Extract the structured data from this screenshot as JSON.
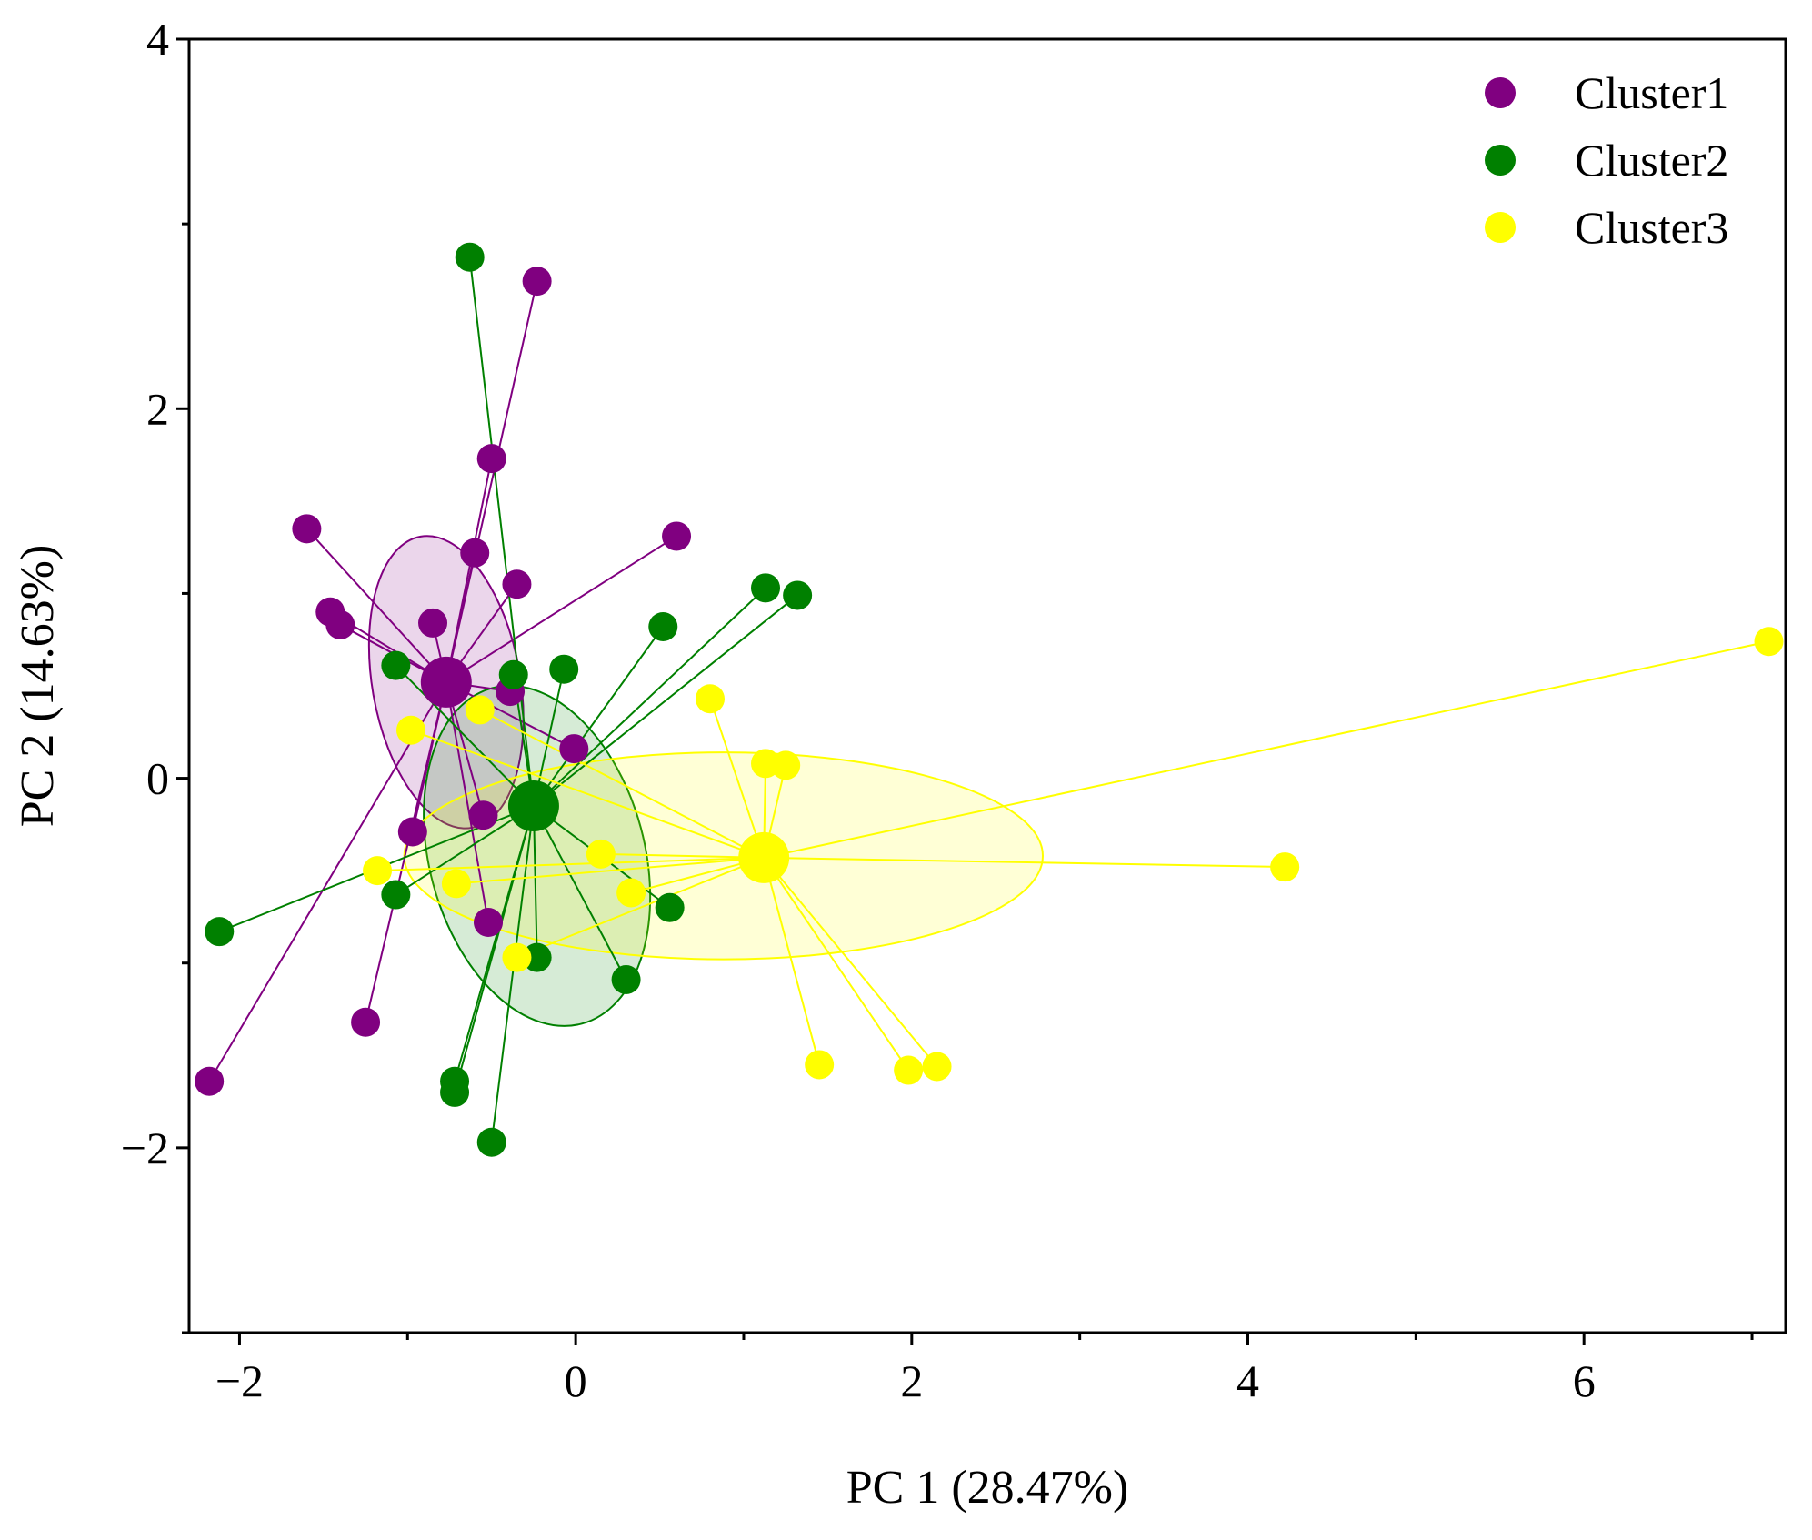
{
  "chart_data": {
    "type": "scatter",
    "title": "",
    "xlabel": "PC 1 (28.47%)",
    "ylabel": "PC 2 (14.63%)",
    "xlim": [
      -2.3,
      7.2
    ],
    "ylim": [
      -3,
      4
    ],
    "x_ticks": [
      -2,
      0,
      2,
      4,
      6
    ],
    "x_tick_labels": [
      "−2",
      "0",
      "2",
      "4",
      "6"
    ],
    "x_minor_ticks": [
      -1,
      1,
      3,
      5,
      7
    ],
    "y_ticks": [
      -2,
      0,
      2,
      4
    ],
    "y_tick_labels": [
      "−2",
      "0",
      "2",
      "4"
    ],
    "y_minor_ticks": [
      -3,
      -1,
      1,
      3
    ],
    "grid": false,
    "legend_position": "top-right",
    "series": [
      {
        "name": "Cluster1",
        "color": "#800080",
        "centroid": [
          -0.77,
          0.52
        ],
        "ellipse": {
          "center": [
            -0.77,
            0.52
          ],
          "rx": 0.44,
          "ry": 0.8,
          "angle_deg": 10
        },
        "points": [
          [
            -0.23,
            2.69
          ],
          [
            -0.5,
            1.73
          ],
          [
            -1.6,
            1.35
          ],
          [
            0.6,
            1.31
          ],
          [
            -0.6,
            1.22
          ],
          [
            -0.35,
            1.05
          ],
          [
            -1.46,
            0.9
          ],
          [
            -1.4,
            0.83
          ],
          [
            -0.85,
            0.84
          ],
          [
            -0.39,
            0.47
          ],
          [
            -0.01,
            0.16
          ],
          [
            -0.97,
            -0.29
          ],
          [
            -0.55,
            -0.2
          ],
          [
            -0.52,
            -0.78
          ],
          [
            -1.25,
            -1.32
          ],
          [
            -2.18,
            -1.64
          ]
        ]
      },
      {
        "name": "Cluster2",
        "color": "#008000",
        "centroid": [
          -0.25,
          -0.15
        ],
        "ellipse": {
          "center": [
            -0.23,
            -0.42
          ],
          "rx": 0.64,
          "ry": 0.94,
          "angle_deg": 15
        },
        "points": [
          [
            -0.63,
            2.82
          ],
          [
            1.13,
            1.03
          ],
          [
            1.32,
            0.99
          ],
          [
            0.52,
            0.82
          ],
          [
            -1.07,
            0.61
          ],
          [
            -0.37,
            0.56
          ],
          [
            -0.07,
            0.59
          ],
          [
            -1.07,
            -0.63
          ],
          [
            0.56,
            -0.7
          ],
          [
            -2.12,
            -0.83
          ],
          [
            -0.23,
            -0.97
          ],
          [
            0.3,
            -1.09
          ],
          [
            -0.72,
            -1.64
          ],
          [
            -0.72,
            -1.7
          ],
          [
            -0.5,
            -1.97
          ]
        ]
      },
      {
        "name": "Cluster3",
        "color": "#FFFF00",
        "centroid": [
          1.12,
          -0.43
        ],
        "ellipse": {
          "center": [
            0.88,
            -0.42
          ],
          "rx": 1.9,
          "ry": 0.56,
          "angle_deg": 0
        },
        "points": [
          [
            7.1,
            0.74
          ],
          [
            0.8,
            0.43
          ],
          [
            -0.57,
            0.37
          ],
          [
            -0.98,
            0.26
          ],
          [
            1.13,
            0.08
          ],
          [
            1.25,
            0.07
          ],
          [
            0.15,
            -0.41
          ],
          [
            -1.18,
            -0.5
          ],
          [
            -0.71,
            -0.57
          ],
          [
            0.33,
            -0.62
          ],
          [
            4.22,
            -0.48
          ],
          [
            -0.35,
            -0.97
          ],
          [
            1.45,
            -1.55
          ],
          [
            1.98,
            -1.58
          ],
          [
            2.15,
            -1.56
          ]
        ]
      }
    ]
  }
}
